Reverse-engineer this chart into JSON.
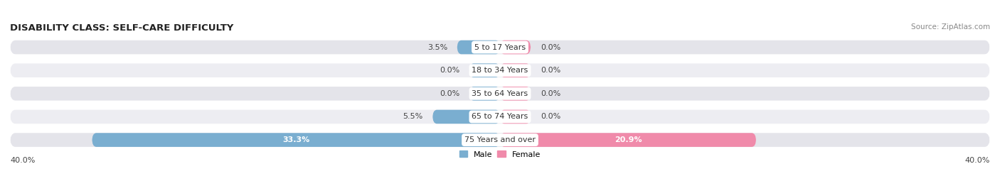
{
  "title": "DISABILITY CLASS: SELF-CARE DIFFICULTY",
  "source": "Source: ZipAtlas.com",
  "categories": [
    "5 to 17 Years",
    "18 to 34 Years",
    "35 to 64 Years",
    "65 to 74 Years",
    "75 Years and over"
  ],
  "male_values": [
    3.5,
    0.0,
    0.0,
    5.5,
    33.3
  ],
  "female_values": [
    0.0,
    0.0,
    0.0,
    0.0,
    20.9
  ],
  "male_labels": [
    "3.5%",
    "0.0%",
    "0.0%",
    "5.5%",
    "33.3%"
  ],
  "female_labels": [
    "0.0%",
    "0.0%",
    "0.0%",
    "0.0%",
    "20.9%"
  ],
  "max_val": 40.0,
  "stub_val": 2.5,
  "male_color": "#7aaed0",
  "female_color": "#f08aaa",
  "bar_bg_color": "#e4e4ea",
  "bar_bg_color2": "#ededf2",
  "title_fontsize": 9.5,
  "source_fontsize": 7.5,
  "label_fontsize": 8,
  "cat_fontsize": 8,
  "bar_height": 0.6,
  "x_axis_label_left": "40.0%",
  "x_axis_label_right": "40.0%",
  "legend_male": "Male",
  "legend_female": "Female"
}
